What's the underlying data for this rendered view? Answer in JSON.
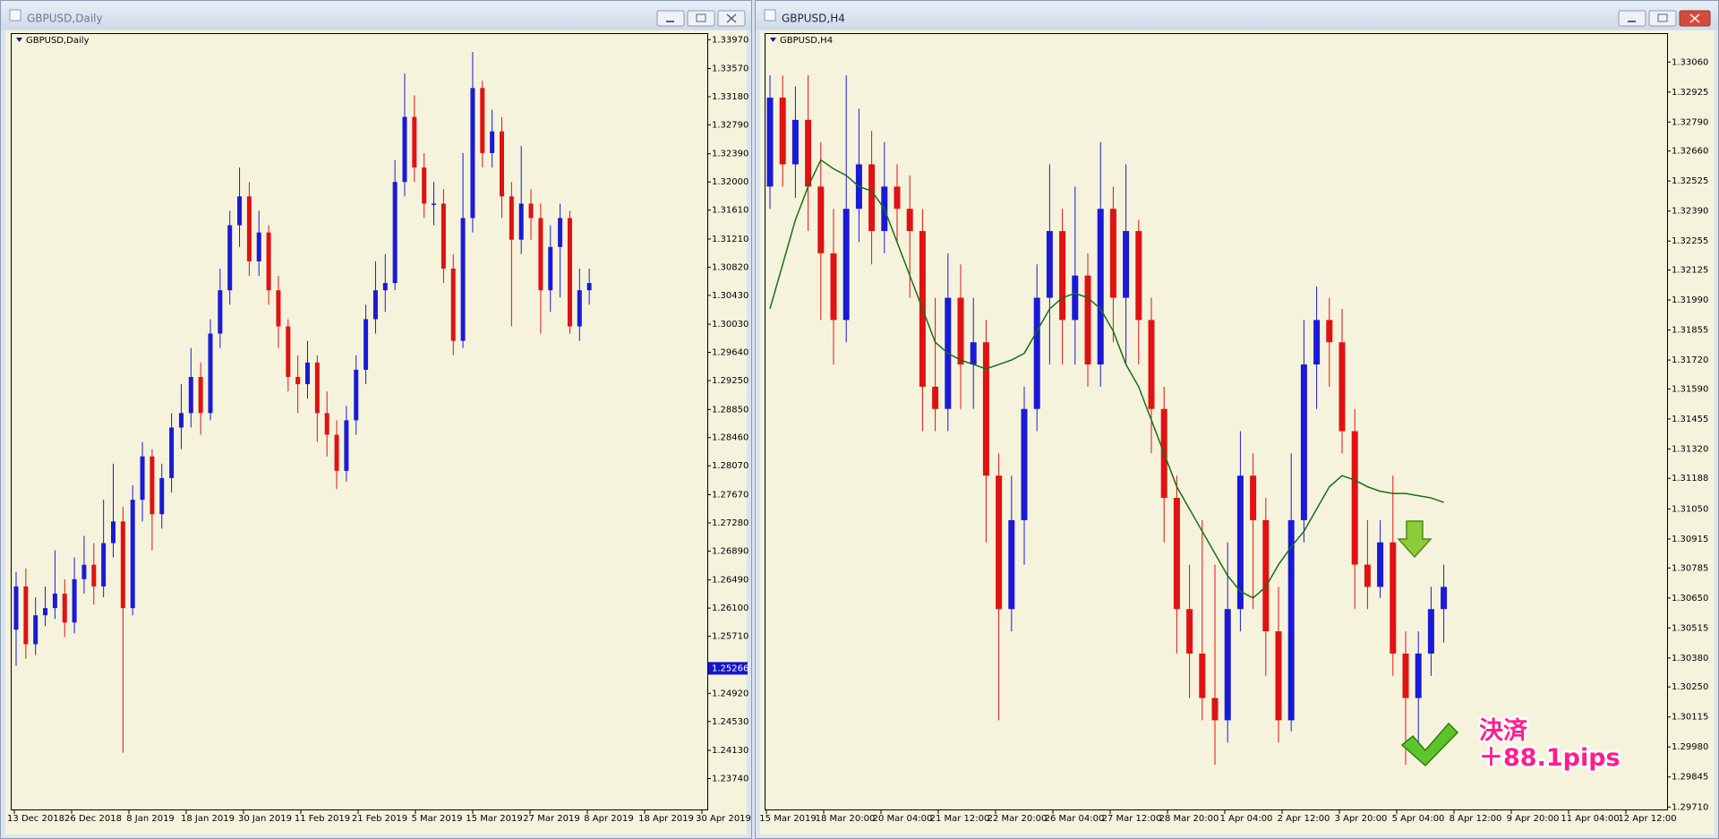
{
  "chart_data": [
    {
      "type": "candlestick",
      "window_title": "GBPUSD,Daily",
      "title": "GBPUSD,Daily",
      "up_color": "#1a1ad6",
      "down_color": "#e01212",
      "open": [
        1.258,
        1.264,
        1.256,
        1.26,
        1.261,
        1.263,
        1.259,
        1.265,
        1.267,
        1.264,
        1.27,
        1.273,
        1.261,
        1.276,
        1.282,
        1.274,
        1.279,
        1.286,
        1.288,
        1.293,
        1.288,
        1.299,
        1.305,
        1.314,
        1.318,
        1.309,
        1.313,
        1.305,
        1.3,
        1.293,
        1.292,
        1.295,
        1.288,
        1.285,
        1.28,
        1.287,
        1.294,
        1.301,
        1.305,
        1.306,
        1.32,
        1.329,
        1.322,
        1.317,
        1.317,
        1.308,
        1.298,
        1.315,
        1.333,
        1.324,
        1.327,
        1.318,
        1.312,
        1.317,
        1.315,
        1.305,
        1.311,
        1.315,
        1.3,
        1.305
      ],
      "high": [
        1.266,
        1.2665,
        1.2625,
        1.264,
        1.269,
        1.265,
        1.268,
        1.271,
        1.27,
        1.276,
        1.281,
        1.275,
        1.278,
        1.284,
        1.283,
        1.281,
        1.288,
        1.292,
        1.297,
        1.295,
        1.301,
        1.308,
        1.316,
        1.322,
        1.32,
        1.316,
        1.314,
        1.307,
        1.301,
        1.296,
        1.298,
        1.296,
        1.291,
        1.287,
        1.289,
        1.296,
        1.303,
        1.309,
        1.31,
        1.323,
        1.335,
        1.332,
        1.324,
        1.32,
        1.319,
        1.31,
        1.324,
        1.338,
        1.334,
        1.33,
        1.329,
        1.32,
        1.325,
        1.319,
        1.317,
        1.314,
        1.317,
        1.316,
        1.308,
        1.308
      ],
      "low": [
        1.253,
        1.254,
        1.2545,
        1.2585,
        1.2595,
        1.257,
        1.2575,
        1.263,
        1.2615,
        1.2625,
        1.268,
        1.241,
        1.26,
        1.273,
        1.269,
        1.272,
        1.277,
        1.283,
        1.286,
        1.285,
        1.287,
        1.297,
        1.303,
        1.311,
        1.307,
        1.307,
        1.303,
        1.297,
        1.291,
        1.288,
        1.29,
        1.284,
        1.282,
        1.2775,
        1.2785,
        1.285,
        1.292,
        1.299,
        1.302,
        1.305,
        1.318,
        1.32,
        1.315,
        1.314,
        1.306,
        1.296,
        1.297,
        1.313,
        1.322,
        1.322,
        1.315,
        1.3,
        1.31,
        1.312,
        1.299,
        1.302,
        1.304,
        1.299,
        1.298,
        1.303
      ],
      "close": [
        1.264,
        1.256,
        1.26,
        1.261,
        1.263,
        1.259,
        1.265,
        1.267,
        1.264,
        1.27,
        1.273,
        1.261,
        1.276,
        1.282,
        1.274,
        1.279,
        1.286,
        1.288,
        1.293,
        1.288,
        1.299,
        1.305,
        1.314,
        1.318,
        1.309,
        1.313,
        1.305,
        1.3,
        1.293,
        1.292,
        1.295,
        1.288,
        1.285,
        1.28,
        1.287,
        1.294,
        1.301,
        1.305,
        1.306,
        1.32,
        1.329,
        1.322,
        1.317,
        1.317,
        1.308,
        1.298,
        1.315,
        1.333,
        1.324,
        1.327,
        1.318,
        1.312,
        1.317,
        1.315,
        1.305,
        1.311,
        1.315,
        1.3,
        1.305,
        1.306
      ],
      "ylim": [
        1.233,
        1.3406
      ],
      "yticks": [
        {
          "value": 1.3397,
          "label": "1.33970"
        },
        {
          "value": 1.3357,
          "label": "1.33570"
        },
        {
          "value": 1.3318,
          "label": "1.33180"
        },
        {
          "value": 1.3279,
          "label": "1.32790"
        },
        {
          "value": 1.3239,
          "label": "1.32390"
        },
        {
          "value": 1.32,
          "label": "1.32000"
        },
        {
          "value": 1.3161,
          "label": "1.31610"
        },
        {
          "value": 1.3121,
          "label": "1.31210"
        },
        {
          "value": 1.3082,
          "label": "1.30820"
        },
        {
          "value": 1.3043,
          "label": "1.30430"
        },
        {
          "value": 1.3003,
          "label": "1.30030"
        },
        {
          "value": 1.2964,
          "label": "1.29640"
        },
        {
          "value": 1.2925,
          "label": "1.29250"
        },
        {
          "value": 1.2885,
          "label": "1.28850"
        },
        {
          "value": 1.2846,
          "label": "1.28460"
        },
        {
          "value": 1.2807,
          "label": "1.28070"
        },
        {
          "value": 1.2767,
          "label": "1.27670"
        },
        {
          "value": 1.2728,
          "label": "1.27280"
        },
        {
          "value": 1.2689,
          "label": "1.26890"
        },
        {
          "value": 1.2649,
          "label": "1.26490"
        },
        {
          "value": 1.261,
          "label": "1.26100"
        },
        {
          "value": 1.2571,
          "label": "1.25710"
        },
        {
          "value": 1.2492,
          "label": "1.24920"
        },
        {
          "value": 1.2453,
          "label": "1.24530"
        },
        {
          "value": 1.2413,
          "label": "1.24130"
        },
        {
          "value": 1.2374,
          "label": "1.23740"
        }
      ],
      "price_marker": {
        "value": 1.25266,
        "label": "1.25266"
      },
      "xticks": [
        "13 Dec 2018",
        "26 Dec 2018",
        "8 Jan 2019",
        "18 Jan 2019",
        "30 Jan 2019",
        "11 Feb 2019",
        "21 Feb 2019",
        "5 Mar 2019",
        "15 Mar 2019",
        "27 Mar 2019",
        "8 Apr 2019",
        "18 Apr 2019",
        "30 Apr 2019"
      ]
    },
    {
      "type": "candlestick",
      "window_title": "GBPUSD,H4",
      "title": "GBPUSD,H4",
      "up_color": "#1a1ad6",
      "down_color": "#e01212",
      "open": [
        1.325,
        1.329,
        1.326,
        1.328,
        1.325,
        1.322,
        1.319,
        1.324,
        1.326,
        1.323,
        1.325,
        1.324,
        1.323,
        1.316,
        1.315,
        1.32,
        1.317,
        1.318,
        1.312,
        1.306,
        1.31,
        1.315,
        1.32,
        1.323,
        1.319,
        1.321,
        1.317,
        1.324,
        1.32,
        1.323,
        1.319,
        1.315,
        1.311,
        1.306,
        1.304,
        1.302,
        1.301,
        1.306,
        1.312,
        1.31,
        1.305,
        1.301,
        1.31,
        1.317,
        1.319,
        1.318,
        1.314,
        1.308,
        1.307,
        1.309,
        1.304,
        1.302,
        1.304,
        1.306
      ],
      "high": [
        1.33,
        1.33,
        1.3295,
        1.33,
        1.327,
        1.324,
        1.33,
        1.3285,
        1.3275,
        1.327,
        1.326,
        1.3255,
        1.324,
        1.32,
        1.322,
        1.3215,
        1.32,
        1.319,
        1.313,
        1.312,
        1.316,
        1.3215,
        1.326,
        1.324,
        1.325,
        1.322,
        1.327,
        1.325,
        1.326,
        1.3235,
        1.32,
        1.316,
        1.312,
        1.308,
        1.31,
        1.308,
        1.309,
        1.314,
        1.313,
        1.311,
        1.307,
        1.313,
        1.319,
        1.3205,
        1.32,
        1.3195,
        1.315,
        1.31,
        1.31,
        1.312,
        1.305,
        1.305,
        1.307,
        1.308
      ],
      "low": [
        1.324,
        1.325,
        1.3245,
        1.323,
        1.319,
        1.317,
        1.318,
        1.3225,
        1.3215,
        1.322,
        1.3225,
        1.32,
        1.314,
        1.314,
        1.314,
        1.315,
        1.315,
        1.309,
        1.301,
        1.305,
        1.308,
        1.314,
        1.317,
        1.317,
        1.317,
        1.316,
        1.316,
        1.318,
        1.317,
        1.317,
        1.313,
        1.309,
        1.304,
        1.302,
        1.301,
        1.299,
        1.3,
        1.305,
        1.306,
        1.303,
        1.3,
        1.3005,
        1.309,
        1.315,
        1.316,
        1.313,
        1.306,
        1.306,
        1.3065,
        1.303,
        1.299,
        1.3,
        1.303,
        1.3045
      ],
      "close": [
        1.329,
        1.326,
        1.328,
        1.325,
        1.322,
        1.319,
        1.324,
        1.326,
        1.323,
        1.325,
        1.324,
        1.323,
        1.316,
        1.315,
        1.32,
        1.317,
        1.318,
        1.312,
        1.306,
        1.31,
        1.315,
        1.32,
        1.323,
        1.319,
        1.321,
        1.317,
        1.324,
        1.32,
        1.323,
        1.319,
        1.315,
        1.311,
        1.306,
        1.304,
        1.302,
        1.301,
        1.306,
        1.312,
        1.31,
        1.305,
        1.301,
        1.31,
        1.317,
        1.319,
        1.318,
        1.314,
        1.308,
        1.307,
        1.309,
        1.304,
        1.302,
        1.304,
        1.306,
        1.307
      ],
      "ma": {
        "color": "#137013",
        "values": [
          1.3195,
          1.3215,
          1.3235,
          1.325,
          1.3262,
          1.3258,
          1.3255,
          1.325,
          1.3248,
          1.324,
          1.3225,
          1.321,
          1.3195,
          1.318,
          1.3175,
          1.3172,
          1.317,
          1.3168,
          1.317,
          1.3172,
          1.3175,
          1.3185,
          1.3195,
          1.32,
          1.3202,
          1.32,
          1.3195,
          1.3185,
          1.317,
          1.316,
          1.3145,
          1.313,
          1.3115,
          1.3105,
          1.3095,
          1.3085,
          1.3075,
          1.3068,
          1.3065,
          1.307,
          1.308,
          1.3088,
          1.3095,
          1.3105,
          1.3115,
          1.312,
          1.3118,
          1.3115,
          1.3113,
          1.3112,
          1.3112,
          1.3111,
          1.311,
          1.3108
        ]
      },
      "ylim": [
        1.29695,
        1.3319
      ],
      "yticks": [
        {
          "value": 1.3306,
          "label": "1.33060"
        },
        {
          "value": 1.32925,
          "label": "1.32925"
        },
        {
          "value": 1.3279,
          "label": "1.32790"
        },
        {
          "value": 1.3266,
          "label": "1.32660"
        },
        {
          "value": 1.32525,
          "label": "1.32525"
        },
        {
          "value": 1.3239,
          "label": "1.32390"
        },
        {
          "value": 1.32255,
          "label": "1.32255"
        },
        {
          "value": 1.32125,
          "label": "1.32125"
        },
        {
          "value": 1.3199,
          "label": "1.31990"
        },
        {
          "value": 1.31855,
          "label": "1.31855"
        },
        {
          "value": 1.3172,
          "label": "1.31720"
        },
        {
          "value": 1.3159,
          "label": "1.31590"
        },
        {
          "value": 1.31455,
          "label": "1.31455"
        },
        {
          "value": 1.3132,
          "label": "1.31320"
        },
        {
          "value": 1.31188,
          "label": "1.31188"
        },
        {
          "value": 1.3105,
          "label": "1.31050"
        },
        {
          "value": 1.30915,
          "label": "1.30915"
        },
        {
          "value": 1.30785,
          "label": "1.30785"
        },
        {
          "value": 1.3065,
          "label": "1.30650"
        },
        {
          "value": 1.30515,
          "label": "1.30515"
        },
        {
          "value": 1.3038,
          "label": "1.30380"
        },
        {
          "value": 1.3025,
          "label": "1.30250"
        },
        {
          "value": 1.30115,
          "label": "1.30115"
        },
        {
          "value": 1.2998,
          "label": "1.29980"
        },
        {
          "value": 1.29845,
          "label": "1.29845"
        },
        {
          "value": 1.2971,
          "label": "1.29710"
        }
      ],
      "xticks": [
        "15 Mar 2019",
        "18 Mar 20:00",
        "20 Mar 04:00",
        "21 Mar 12:00",
        "22 Mar 20:00",
        "26 Mar 04:00",
        "27 Mar 12:00",
        "28 Mar 20:00",
        "1 Apr 04:00",
        "2 Apr 12:00",
        "3 Apr 20:00",
        "5 Apr 04:00",
        "8 Apr 12:00",
        "9 Apr 20:00",
        "11 Apr 04:00",
        "12 Apr 12:00"
      ],
      "annotations": [
        "決済",
        "＋88.1pips"
      ]
    }
  ]
}
